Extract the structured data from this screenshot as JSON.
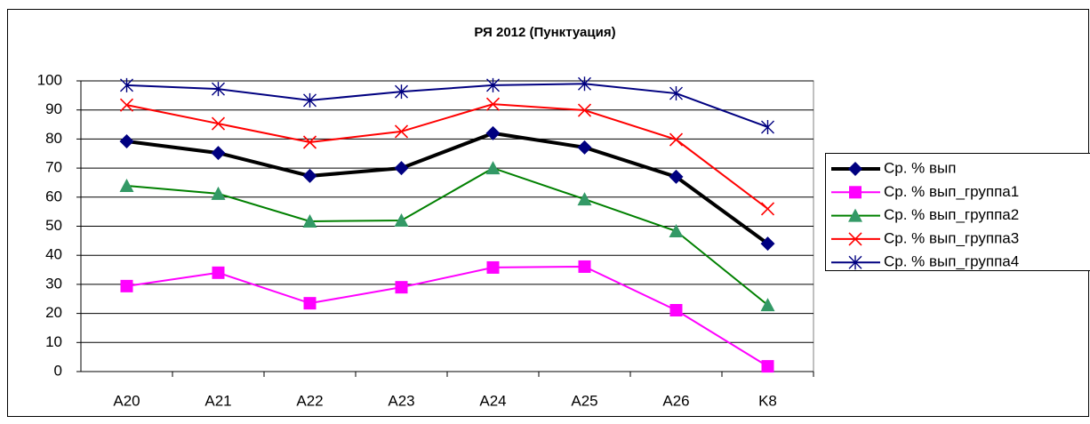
{
  "chart_data": {
    "type": "line",
    "title": "РЯ 2012 (Пунктуация)",
    "categories": [
      "A20",
      "A21",
      "A22",
      "A23",
      "A24",
      "A25",
      "A26",
      "K8"
    ],
    "ylim": [
      0,
      100
    ],
    "yticks": [
      0,
      10,
      20,
      30,
      40,
      50,
      60,
      70,
      80,
      90,
      100
    ],
    "grid": true,
    "legend": "right",
    "series": [
      {
        "name": "Ср. % вып",
        "color": "#000000",
        "marker_color": "#000080",
        "marker": "diamond",
        "line_width": 4,
        "values": [
          79.2,
          75.2,
          67.3,
          70.0,
          82.0,
          77.1,
          67.0,
          44.0
        ]
      },
      {
        "name": "Ср. % вып_группа1",
        "color": "#ff00ff",
        "marker_color": "#ff00ff",
        "marker": "square",
        "line_width": 2,
        "values": [
          29.4,
          34.0,
          23.5,
          29.0,
          35.8,
          36.1,
          21.1,
          1.8
        ]
      },
      {
        "name": "Ср. % вып_группа2",
        "color": "#008000",
        "marker_color": "#339966",
        "marker": "triangle",
        "line_width": 2,
        "values": [
          63.9,
          61.2,
          51.7,
          52.0,
          70.0,
          59.3,
          48.3,
          22.9
        ]
      },
      {
        "name": "Ср. % вып_группа3",
        "color": "#ff0000",
        "marker_color": "#ff0000",
        "marker": "x",
        "line_width": 2,
        "values": [
          91.7,
          85.3,
          78.9,
          82.6,
          92.0,
          89.9,
          79.8,
          56.0
        ]
      },
      {
        "name": "Ср. % вып_группа4",
        "color": "#000080",
        "marker_color": "#000080",
        "marker": "star",
        "line_width": 2,
        "values": [
          98.5,
          97.2,
          93.3,
          96.3,
          98.5,
          99.0,
          95.7,
          84.1
        ]
      }
    ]
  }
}
